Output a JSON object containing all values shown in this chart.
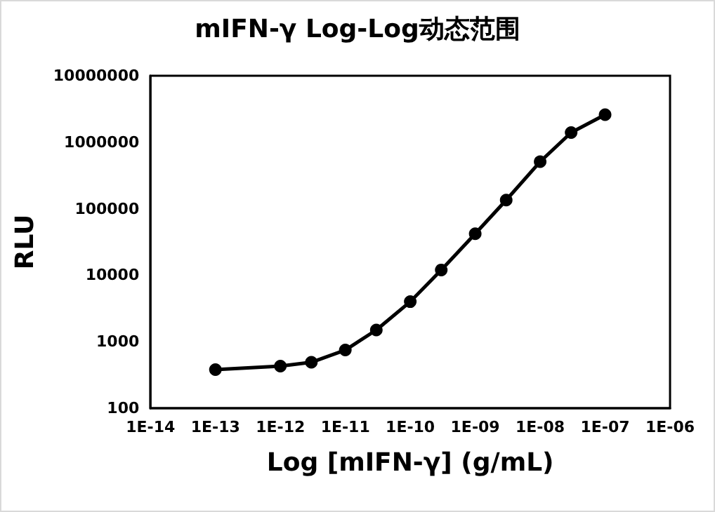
{
  "chart_data": {
    "type": "line",
    "title": "mIFN-γ Log-Log动态范围",
    "xlabel": "Log [mIFN-γ] (g/mL)",
    "ylabel": "RLU",
    "x": [
      1e-13,
      1e-12,
      3e-12,
      1e-11,
      3e-11,
      1e-10,
      3e-10,
      1e-09,
      3e-09,
      1e-08,
      3e-08,
      1e-07
    ],
    "series": [
      {
        "color": "#000000",
        "values": [
          380,
          430,
          490,
          750,
          1500,
          4000,
          12000,
          42000,
          135000,
          510000,
          1400000,
          2600000
        ]
      }
    ],
    "log": "xy",
    "xlim": [
      1e-14,
      1e-06
    ],
    "xticks": [
      {
        "value": 1e-14,
        "label": "1E-14"
      },
      {
        "value": 1e-13,
        "label": "1E-13"
      },
      {
        "value": 1e-12,
        "label": "1E-12"
      },
      {
        "value": 1e-11,
        "label": "1E-11"
      },
      {
        "value": 1e-10,
        "label": "1E-10"
      },
      {
        "value": 1e-09,
        "label": "1E-09"
      },
      {
        "value": 1e-08,
        "label": "1E-08"
      },
      {
        "value": 1e-07,
        "label": "1E-07"
      },
      {
        "value": 1e-06,
        "label": "1E-06"
      }
    ],
    "ylim": [
      100,
      10000000
    ],
    "yticks": [
      100,
      1000,
      10000,
      100000,
      1000000,
      10000000
    ],
    "grid": false,
    "marker": "circle",
    "line_style": "solid"
  }
}
